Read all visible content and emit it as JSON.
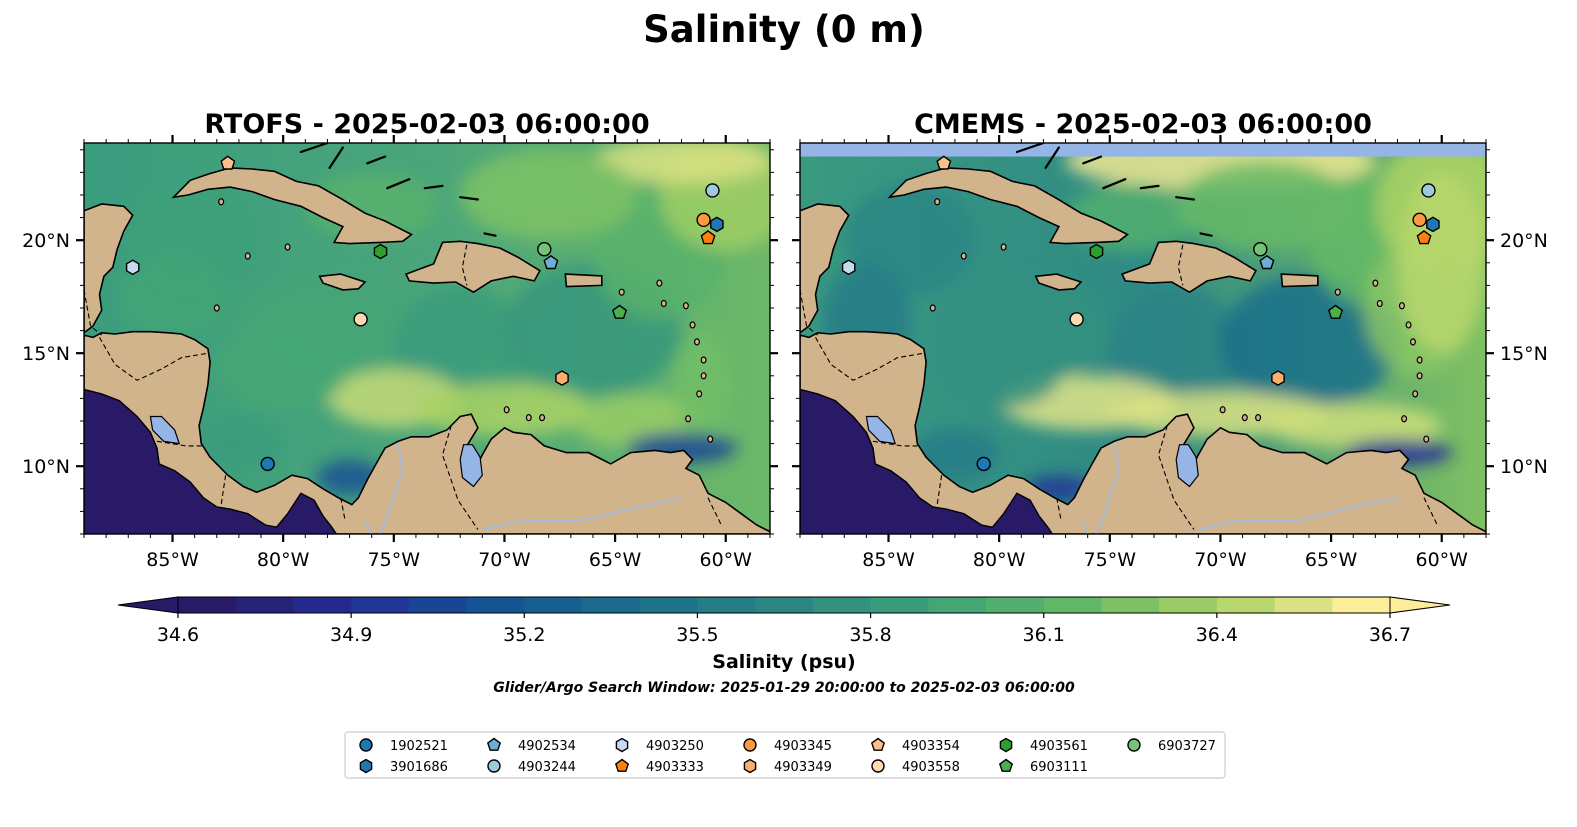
{
  "figure": {
    "title": "Salinity (0 m)"
  },
  "panels": [
    {
      "id": "rtofs",
      "title": "RTOFS - 2025-02-03 06:00:00"
    },
    {
      "id": "cmems",
      "title": "CMEMS - 2025-02-03 06:00:00"
    }
  ],
  "map_extent": {
    "lon_min": -89,
    "lon_max": -58,
    "lat_min": 7,
    "lat_max": 24.3
  },
  "lon_ticks": [
    {
      "value": -85,
      "label": "85°W"
    },
    {
      "value": -80,
      "label": "80°W"
    },
    {
      "value": -75,
      "label": "75°W"
    },
    {
      "value": -70,
      "label": "70°W"
    },
    {
      "value": -65,
      "label": "65°W"
    },
    {
      "value": -60,
      "label": "60°W"
    }
  ],
  "lat_ticks": [
    {
      "value": 10,
      "label": "10°N"
    },
    {
      "value": 15,
      "label": "15°N"
    },
    {
      "value": 20,
      "label": "20°N"
    }
  ],
  "colorbar": {
    "label": "Salinity (psu)",
    "min": 34.6,
    "max": 36.7,
    "extend": "both",
    "ticks": [
      "34.6",
      "34.9",
      "35.2",
      "35.5",
      "35.8",
      "36.1",
      "36.4",
      "36.7"
    ],
    "colormap": "haline"
  },
  "search_window": "Glider/Argo Search Window: 2025-01-29 20:00:00 to 2025-02-03 06:00:00",
  "colors": {
    "land": "#d2b48c",
    "pacific": "#281a66",
    "lakes": "#95b5e6",
    "rivers": "#a6b9d6"
  },
  "legend": [
    {
      "id": "1902521",
      "label": "1902521",
      "marker": "circle",
      "color": "#1f77b4"
    },
    {
      "id": "3901686",
      "label": "3901686",
      "marker": "hexagon",
      "color": "#1f77b4"
    },
    {
      "id": "4902534",
      "label": "4902534",
      "marker": "pentagon",
      "color": "#6baed6"
    },
    {
      "id": "4903244",
      "label": "4903244",
      "marker": "circle",
      "color": "#9ecae1"
    },
    {
      "id": "4903250",
      "label": "4903250",
      "marker": "hexagon",
      "color": "#c6dbef"
    },
    {
      "id": "4903333",
      "label": "4903333",
      "marker": "pentagon",
      "color": "#ff7f0e"
    },
    {
      "id": "4903345",
      "label": "4903345",
      "marker": "circle",
      "color": "#fd9a3f"
    },
    {
      "id": "4903349",
      "label": "4903349",
      "marker": "hexagon",
      "color": "#fdae6b"
    },
    {
      "id": "4903354",
      "label": "4903354",
      "marker": "pentagon",
      "color": "#fdc08c"
    },
    {
      "id": "4903558",
      "label": "4903558",
      "marker": "circle",
      "color": "#fdd9b4"
    },
    {
      "id": "4903561",
      "label": "4903561",
      "marker": "hexagon",
      "color": "#2ca02c"
    },
    {
      "id": "6903111",
      "label": "6903111",
      "marker": "pentagon",
      "color": "#4daf4a"
    },
    {
      "id": "6903727",
      "label": "6903727",
      "marker": "circle",
      "color": "#74c476"
    }
  ],
  "floats": [
    {
      "id": "1902521",
      "lon": -80.7,
      "lat": 10.1
    },
    {
      "id": "3901686",
      "lon": -60.4,
      "lat": 20.7
    },
    {
      "id": "4902534",
      "lon": -67.9,
      "lat": 19.0
    },
    {
      "id": "4903244",
      "lon": -60.6,
      "lat": 22.2
    },
    {
      "id": "4903250",
      "lon": -86.8,
      "lat": 18.8
    },
    {
      "id": "4903333",
      "lon": -60.8,
      "lat": 20.1
    },
    {
      "id": "4903345",
      "lon": -61.0,
      "lat": 20.9
    },
    {
      "id": "4903349",
      "lon": -67.4,
      "lat": 13.9
    },
    {
      "id": "4903354",
      "lon": -82.5,
      "lat": 23.4
    },
    {
      "id": "4903558",
      "lon": -76.5,
      "lat": 16.5
    },
    {
      "id": "4903561",
      "lon": -75.6,
      "lat": 19.5
    },
    {
      "id": "6903111",
      "lon": -64.8,
      "lat": 16.8
    },
    {
      "id": "6903727",
      "lon": -68.2,
      "lat": 19.6
    }
  ]
}
